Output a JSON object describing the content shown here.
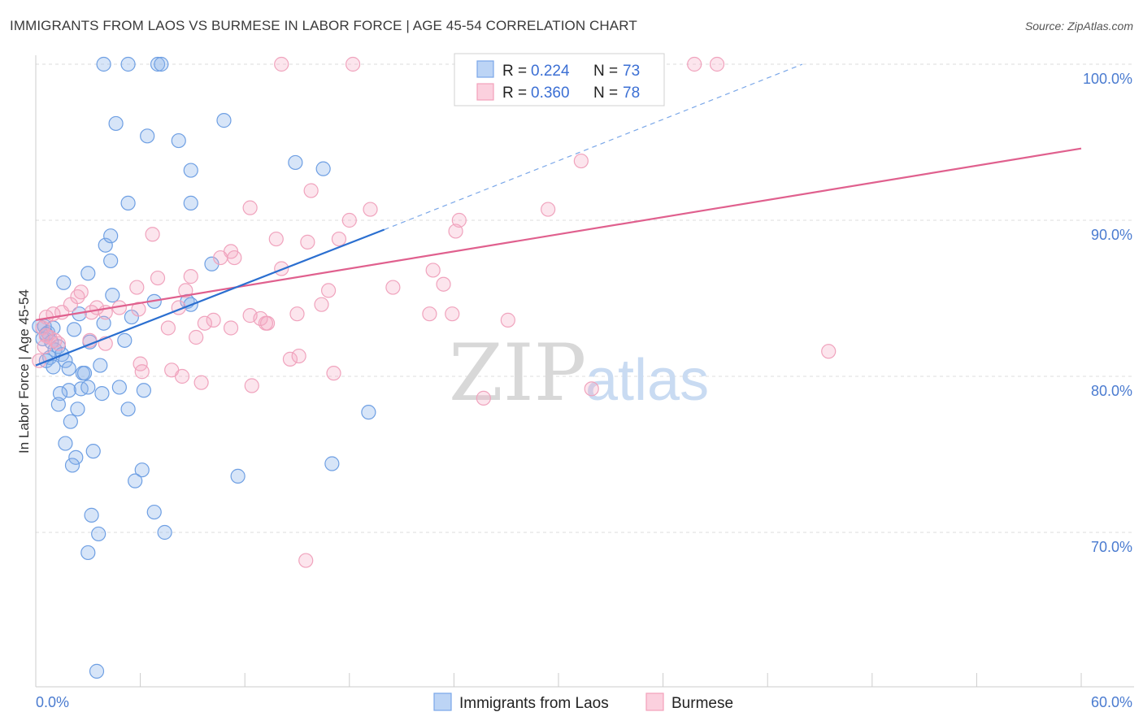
{
  "title": "IMMIGRANTS FROM LAOS VS BURMESE IN LABOR FORCE | AGE 45-54 CORRELATION CHART",
  "source": "Source: ZipAtlas.com",
  "watermark": {
    "zip": "ZIP",
    "atlas": "atlas"
  },
  "legend": {
    "rows": [
      {
        "r_label": "R =",
        "r_value": "0.224",
        "n_label": "N =",
        "n_value": "73"
      },
      {
        "r_label": "R =",
        "r_value": "0.360",
        "n_label": "N =",
        "n_value": "78"
      }
    ]
  },
  "chart_data": {
    "type": "scatter",
    "title": "IMMIGRANTS FROM LAOS VS BURMESE IN LABOR FORCE | AGE 45-54 CORRELATION CHART",
    "xlabel": "",
    "ylabel": "In Labor Force | Age 45-54",
    "xlim": [
      0,
      60
    ],
    "ylim": [
      60,
      101.5
    ],
    "x_tick_labels": [
      "0.0%",
      "60.0%"
    ],
    "y_tick_labels": [
      "70.0%",
      "80.0%",
      "90.0%",
      "100.0%"
    ],
    "y_tick_values": [
      70,
      80,
      90,
      100
    ],
    "grid": true,
    "legend_position": "top-center",
    "colors": {
      "laos": "#7aa7e8",
      "burmese": "#f2a0bb",
      "laos_line": "#2b6fd0",
      "burmese_line": "#e0608e"
    },
    "series": [
      {
        "name": "Immigrants from Laos",
        "r": 0.224,
        "n": 73,
        "trend": {
          "x0": 0.0,
          "y0": 80.7,
          "x1": 20.0,
          "y1": 89.4,
          "dashed_to_x": 44.0,
          "dashed_to_y": 100.0
        },
        "points": [
          [
            3.9,
            100.0
          ],
          [
            5.3,
            100.0
          ],
          [
            7.0,
            100.0
          ],
          [
            7.2,
            100.0
          ],
          [
            4.6,
            96.2
          ],
          [
            10.8,
            96.4
          ],
          [
            6.4,
            95.4
          ],
          [
            8.2,
            95.1
          ],
          [
            8.9,
            93.2
          ],
          [
            14.9,
            93.7
          ],
          [
            16.5,
            93.3
          ],
          [
            5.3,
            91.1
          ],
          [
            8.9,
            91.1
          ],
          [
            4.0,
            88.4
          ],
          [
            4.3,
            89.0
          ],
          [
            4.3,
            87.4
          ],
          [
            10.1,
            87.2
          ],
          [
            3.0,
            86.6
          ],
          [
            1.6,
            86.0
          ],
          [
            4.4,
            85.2
          ],
          [
            6.8,
            84.8
          ],
          [
            8.7,
            84.8
          ],
          [
            2.5,
            84.0
          ],
          [
            5.5,
            83.8
          ],
          [
            0.2,
            83.2
          ],
          [
            0.5,
            83.2
          ],
          [
            0.7,
            82.8
          ],
          [
            1.0,
            83.1
          ],
          [
            2.2,
            83.0
          ],
          [
            3.9,
            83.4
          ],
          [
            0.4,
            82.4
          ],
          [
            0.6,
            82.7
          ],
          [
            0.9,
            82.2
          ],
          [
            1.1,
            81.7
          ],
          [
            1.3,
            81.9
          ],
          [
            1.5,
            81.4
          ],
          [
            0.8,
            81.2
          ],
          [
            0.6,
            81.0
          ],
          [
            1.7,
            81.0
          ],
          [
            5.1,
            82.3
          ],
          [
            3.1,
            82.2
          ],
          [
            1.0,
            80.6
          ],
          [
            1.9,
            80.5
          ],
          [
            2.7,
            80.2
          ],
          [
            2.8,
            80.2
          ],
          [
            3.7,
            80.7
          ],
          [
            2.6,
            79.2
          ],
          [
            3.0,
            79.3
          ],
          [
            3.8,
            78.9
          ],
          [
            4.8,
            79.3
          ],
          [
            6.2,
            79.1
          ],
          [
            1.9,
            79.1
          ],
          [
            1.4,
            78.9
          ],
          [
            1.3,
            78.2
          ],
          [
            2.4,
            77.9
          ],
          [
            5.3,
            77.9
          ],
          [
            19.1,
            77.7
          ],
          [
            2.0,
            77.1
          ],
          [
            1.7,
            75.7
          ],
          [
            3.3,
            75.2
          ],
          [
            2.3,
            74.8
          ],
          [
            2.1,
            74.3
          ],
          [
            17.0,
            74.4
          ],
          [
            6.1,
            74.0
          ],
          [
            11.6,
            73.6
          ],
          [
            5.7,
            73.3
          ],
          [
            3.2,
            71.1
          ],
          [
            6.8,
            71.3
          ],
          [
            3.6,
            69.9
          ],
          [
            7.4,
            70.0
          ],
          [
            3.0,
            68.7
          ],
          [
            3.5,
            61.1
          ],
          [
            8.9,
            84.6
          ]
        ]
      },
      {
        "name": "Burmese",
        "r": 0.36,
        "n": 78,
        "trend": {
          "x0": 0.0,
          "y0": 83.6,
          "x1": 60.0,
          "y1": 94.6
        },
        "points": [
          [
            14.1,
            100.0
          ],
          [
            18.2,
            100.0
          ],
          [
            25.6,
            100.0
          ],
          [
            26.2,
            100.0
          ],
          [
            37.8,
            100.0
          ],
          [
            39.1,
            100.0
          ],
          [
            31.3,
            93.8
          ],
          [
            15.8,
            91.9
          ],
          [
            12.3,
            90.8
          ],
          [
            19.2,
            90.7
          ],
          [
            29.4,
            90.7
          ],
          [
            24.3,
            90.0
          ],
          [
            18.0,
            90.0
          ],
          [
            24.1,
            89.3
          ],
          [
            6.7,
            89.1
          ],
          [
            13.8,
            88.8
          ],
          [
            15.6,
            88.6
          ],
          [
            17.4,
            88.8
          ],
          [
            11.2,
            88.0
          ],
          [
            10.6,
            87.6
          ],
          [
            11.4,
            87.6
          ],
          [
            14.1,
            86.9
          ],
          [
            22.8,
            86.8
          ],
          [
            7.0,
            86.3
          ],
          [
            8.9,
            86.4
          ],
          [
            23.4,
            85.9
          ],
          [
            5.8,
            85.7
          ],
          [
            8.6,
            85.5
          ],
          [
            16.8,
            85.5
          ],
          [
            20.5,
            85.7
          ],
          [
            2.6,
            85.4
          ],
          [
            2.4,
            85.1
          ],
          [
            2.0,
            84.6
          ],
          [
            16.4,
            84.6
          ],
          [
            8.2,
            84.4
          ],
          [
            4.8,
            84.4
          ],
          [
            3.5,
            84.4
          ],
          [
            5.9,
            84.3
          ],
          [
            4.0,
            84.1
          ],
          [
            3.2,
            84.1
          ],
          [
            1.5,
            84.1
          ],
          [
            1.0,
            84.0
          ],
          [
            0.6,
            83.8
          ],
          [
            15.0,
            84.0
          ],
          [
            22.6,
            84.0
          ],
          [
            23.9,
            84.0
          ],
          [
            12.3,
            83.9
          ],
          [
            10.2,
            83.6
          ],
          [
            13.2,
            83.4
          ],
          [
            27.1,
            83.6
          ],
          [
            12.9,
            83.7
          ],
          [
            9.7,
            83.4
          ],
          [
            11.2,
            83.1
          ],
          [
            13.3,
            83.4
          ],
          [
            7.6,
            83.1
          ],
          [
            0.4,
            83.1
          ],
          [
            0.6,
            82.6
          ],
          [
            0.8,
            82.5
          ],
          [
            1.1,
            82.3
          ],
          [
            3.1,
            82.3
          ],
          [
            4.0,
            82.1
          ],
          [
            9.2,
            82.5
          ],
          [
            1.3,
            82.1
          ],
          [
            0.5,
            81.9
          ],
          [
            14.6,
            81.1
          ],
          [
            15.1,
            81.3
          ],
          [
            45.5,
            81.6
          ],
          [
            6.0,
            80.8
          ],
          [
            7.8,
            80.4
          ],
          [
            17.1,
            80.2
          ],
          [
            8.4,
            80.0
          ],
          [
            9.5,
            79.6
          ],
          [
            12.4,
            79.4
          ],
          [
            31.9,
            79.2
          ],
          [
            25.7,
            78.6
          ],
          [
            6.1,
            80.3
          ],
          [
            0.2,
            81.0
          ],
          [
            15.5,
            68.2
          ]
        ]
      }
    ]
  },
  "bottom_legend": [
    {
      "label": "Immigrants from Laos"
    },
    {
      "label": "Burmese"
    }
  ]
}
